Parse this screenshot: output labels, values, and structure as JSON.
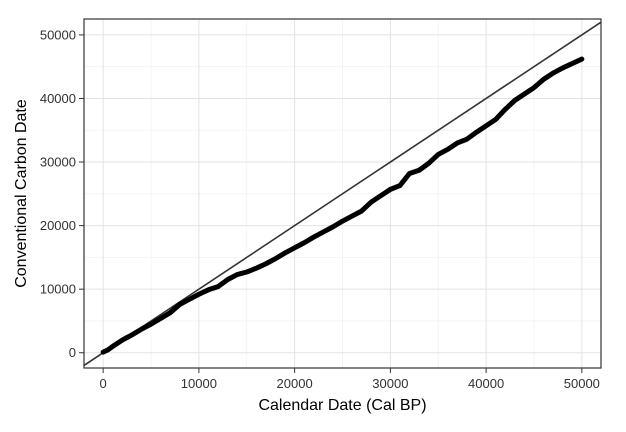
{
  "chart_data": {
    "type": "line",
    "title": "",
    "xlabel": "Calendar Date (Cal BP)",
    "ylabel": "Conventional Carbon Date",
    "xlim": [
      -2000,
      52000
    ],
    "ylim": [
      -2400,
      52500
    ],
    "x_ticks": [
      0,
      10000,
      20000,
      30000,
      40000,
      50000
    ],
    "y_ticks": [
      0,
      10000,
      20000,
      30000,
      40000,
      50000
    ],
    "grid": true,
    "legend": "none",
    "colors": {
      "series": "#000000",
      "reference_line": "#333333"
    },
    "reference_line": {
      "type": "identity",
      "slope": 1,
      "intercept": 0
    },
    "series": [
      {
        "x": [
          0,
          500,
          1000,
          2000,
          3000,
          4000,
          5000,
          6000,
          7000,
          8000,
          9000,
          10000,
          11000,
          12000,
          13000,
          14000,
          15000,
          16000,
          17000,
          18000,
          19000,
          20000,
          21000,
          22000,
          23000,
          24000,
          25000,
          26000,
          27000,
          28000,
          29000,
          30000,
          31000,
          32000,
          33000,
          34000,
          35000,
          36000,
          37000,
          38000,
          39000,
          40000,
          41000,
          42000,
          43000,
          44000,
          45000,
          46000,
          47000,
          48000,
          49000,
          50000
        ],
        "y": [
          100,
          450,
          1000,
          2000,
          2800,
          3700,
          4500,
          5400,
          6300,
          7600,
          8400,
          9200,
          9900,
          10400,
          11500,
          12300,
          12700,
          13300,
          14000,
          14800,
          15700,
          16500,
          17300,
          18200,
          19000,
          19800,
          20700,
          21500,
          22300,
          23700,
          24700,
          25700,
          26300,
          28200,
          28700,
          29800,
          31200,
          32000,
          33000,
          33600,
          34700,
          35700,
          36700,
          38300,
          39700,
          40700,
          41700,
          43000,
          44000,
          44800,
          45500,
          46200
        ]
      }
    ]
  }
}
